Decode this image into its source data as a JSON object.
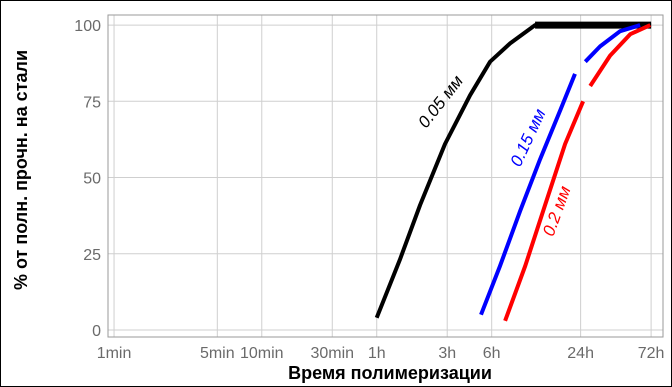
{
  "chart_data": {
    "type": "line",
    "title": "",
    "xlabel": "Время полимеризации",
    "ylabel": "% от полн. прочн. на стали",
    "xscale": "log",
    "x_unit": "minutes",
    "xlim": [
      0.91,
      5200
    ],
    "ylim": [
      -2.3,
      103.3
    ],
    "grid": true,
    "legend": "none (series labelled directly on lines)",
    "x_ticks": [
      {
        "value": 1,
        "label": "1min"
      },
      {
        "value": 5,
        "label": "5min"
      },
      {
        "value": 10,
        "label": "10min"
      },
      {
        "value": 30,
        "label": "30min"
      },
      {
        "value": 60,
        "label": "1h"
      },
      {
        "value": 180,
        "label": "3h"
      },
      {
        "value": 360,
        "label": "6h"
      },
      {
        "value": 1440,
        "label": "24h"
      },
      {
        "value": 4320,
        "label": "72h"
      }
    ],
    "y_ticks": [
      0,
      25,
      50,
      75,
      100
    ],
    "series": [
      {
        "name": "0.05 мм",
        "color": "#000000",
        "segments": [
          [
            [
              60,
              4
            ],
            [
              86,
              23
            ],
            [
              118,
              41
            ],
            [
              174,
              61
            ],
            [
              257,
              77
            ],
            [
              351,
              88
            ],
            [
              480,
              94
            ],
            [
              708,
              100
            ],
            [
              4320,
              100
            ]
          ]
        ]
      },
      {
        "name": "0.15 мм",
        "color": "#0000ff",
        "segments": [
          [
            [
              305,
              5
            ],
            [
              410,
              21
            ],
            [
              561,
              39
            ],
            [
              766,
              56
            ],
            [
              1047,
              72
            ],
            [
              1320,
              84
            ]
          ],
          [
            [
              1550,
              88
            ],
            [
              1950,
              93
            ],
            [
              2665,
              98
            ],
            [
              3640,
              100
            ]
          ]
        ]
      },
      {
        "name": "0.2 мм",
        "color": "#ff0000",
        "segments": [
          [
            [
              444,
              3
            ],
            [
              607,
              21
            ],
            [
              828,
              41
            ],
            [
              1131,
              61
            ],
            [
              1497,
              75
            ]
          ],
          [
            [
              1672,
              80
            ],
            [
              2280,
              90
            ],
            [
              3119,
              97
            ],
            [
              4265,
              100
            ]
          ]
        ]
      }
    ]
  }
}
